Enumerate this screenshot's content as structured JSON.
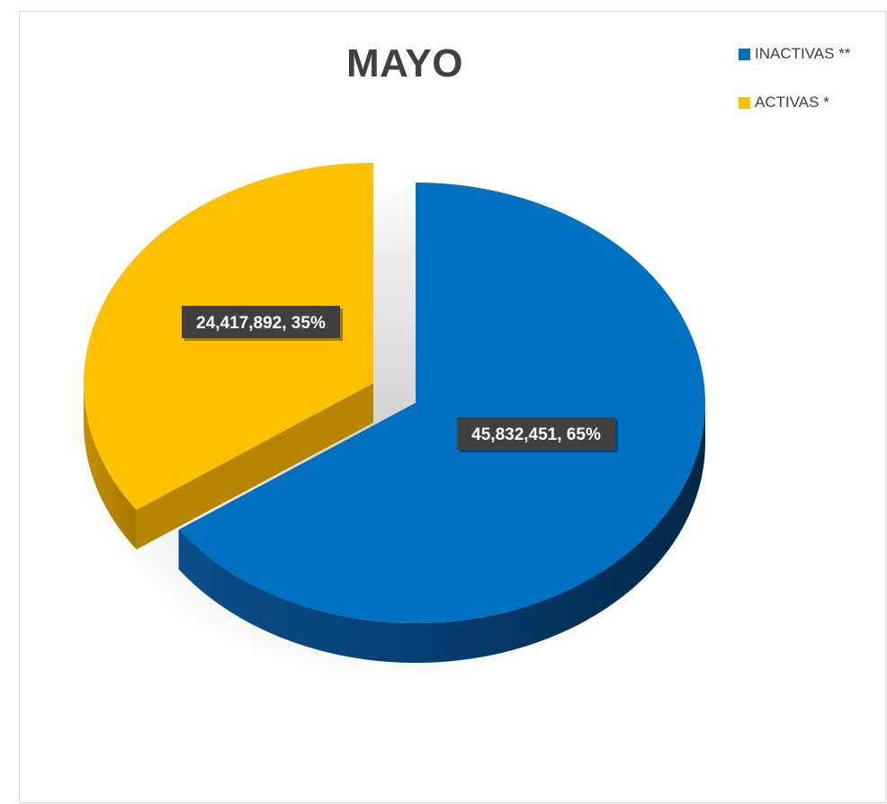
{
  "chart_data": {
    "type": "pie",
    "title": "MAYO",
    "categories": [
      "INACTIVAS **",
      "ACTIVAS *"
    ],
    "values": [
      45832451,
      24417892
    ],
    "percentages": [
      "65%",
      "35%"
    ],
    "data_labels": [
      "45,832,451, 65%",
      "24,417,892, 35%"
    ],
    "colors": [
      "#0070c0",
      "#ffc000"
    ],
    "legend_position": "top-right",
    "exploded": true,
    "style": "3d"
  },
  "legend": {
    "items": [
      {
        "label": "INACTIVAS **",
        "color": "#0070c0"
      },
      {
        "label": "ACTIVAS *",
        "color": "#ffc000"
      }
    ]
  }
}
